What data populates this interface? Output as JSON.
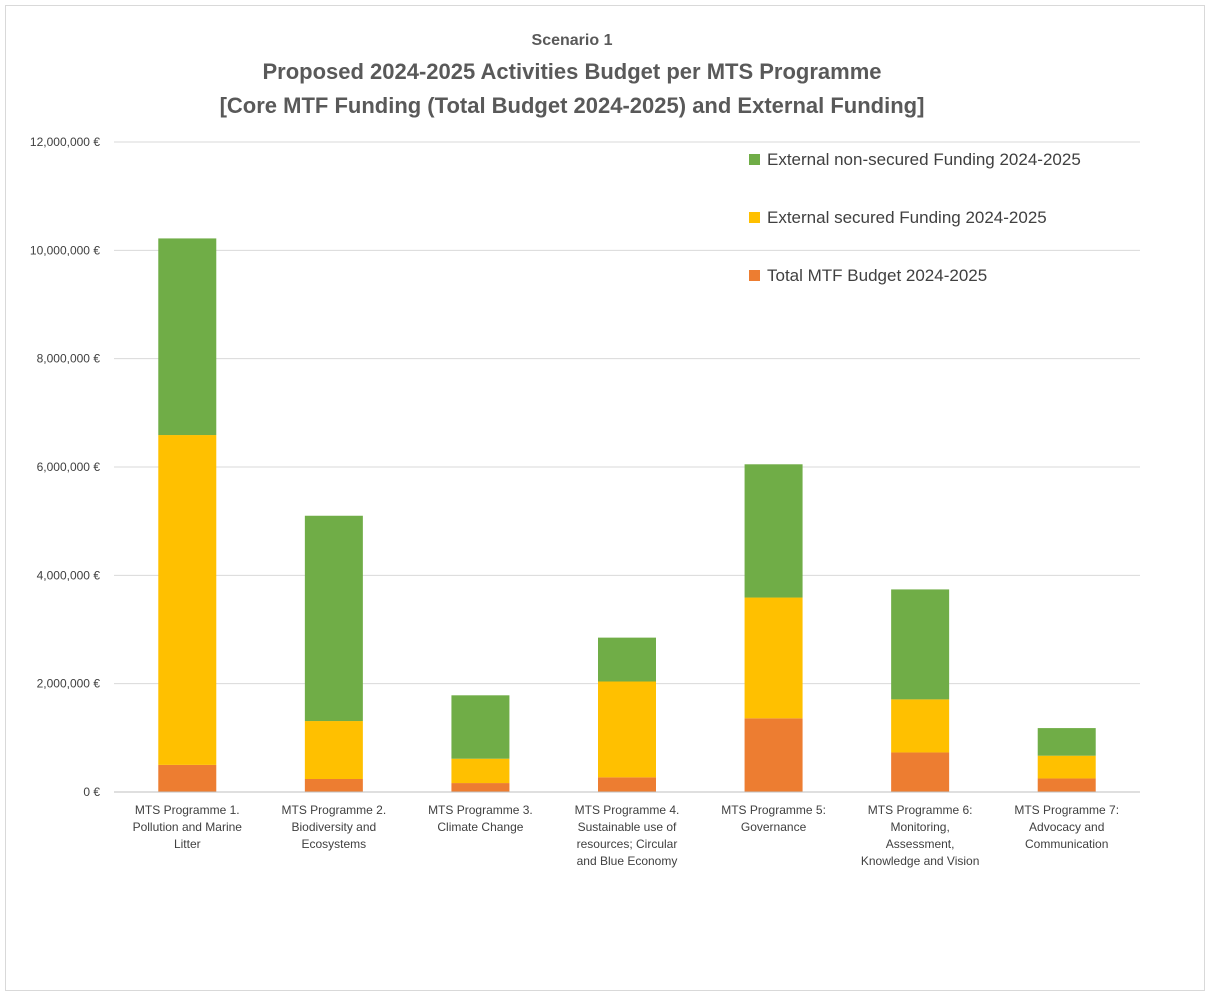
{
  "chart_data": {
    "type": "bar",
    "stacked": true,
    "subtitle": "Scenario 1",
    "title": "Proposed 2024-2025 Activities Budget per MTS Programme",
    "title2": "[Core MTF Funding (Total Budget 2024-2025) and External Funding]",
    "xlabel": "",
    "ylabel": "",
    "ylim": [
      0,
      12000000
    ],
    "y_ticks": [
      {
        "value": 0,
        "label": "0 €"
      },
      {
        "value": 2000000,
        "label": "2,000,000 €"
      },
      {
        "value": 4000000,
        "label": "4,000,000 €"
      },
      {
        "value": 6000000,
        "label": "6,000,000 €"
      },
      {
        "value": 8000000,
        "label": "8,000,000 €"
      },
      {
        "value": 10000000,
        "label": "10,000,000 €"
      },
      {
        "value": 12000000,
        "label": "12,000,000 €"
      }
    ],
    "grid": true,
    "legend_position": "top-right",
    "categories": [
      [
        "MTS Programme 1.",
        "Pollution and Marine",
        "Litter"
      ],
      [
        "MTS Programme 2.",
        "Biodiversity and",
        "Ecosystems"
      ],
      [
        "MTS Programme 3.",
        "Climate Change"
      ],
      [
        "MTS Programme 4.",
        "Sustainable use of",
        "resources; Circular",
        "and Blue Economy"
      ],
      [
        "MTS Programme 5:",
        "Governance"
      ],
      [
        "MTS Programme 6:",
        "Monitoring,",
        "Assessment,",
        "Knowledge and Vision"
      ],
      [
        "MTS Programme 7:",
        "Advocacy and",
        "Communication"
      ]
    ],
    "series": [
      {
        "name": "Total MTF Budget 2024-2025",
        "color": "#ED7D31",
        "values": [
          500000,
          240000,
          165000,
          270000,
          1360000,
          730000,
          250000
        ]
      },
      {
        "name": "External secured Funding 2024-2025",
        "color": "#FFC000",
        "values": [
          6090000,
          1070000,
          450000,
          1770000,
          2230000,
          980000,
          420000
        ]
      },
      {
        "name": "External non-secured Funding 2024-2025",
        "color": "#70AD47",
        "values": [
          3630000,
          3790000,
          1170000,
          810000,
          2460000,
          2030000,
          510000
        ]
      }
    ],
    "legend_order": [
      2,
      1,
      0
    ]
  }
}
